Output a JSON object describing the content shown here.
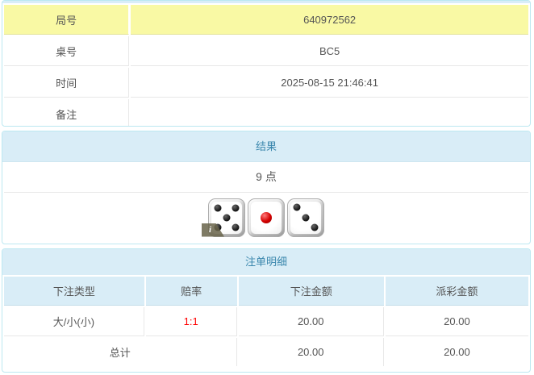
{
  "colors": {
    "highlight_yellow": "#f9f9a4",
    "heading_bg": "#d9edf7",
    "heading_text": "#3a87ad",
    "panel_border": "#bce8f1",
    "odds_red": "#ff0000",
    "body_text": "#555555"
  },
  "info_table": {
    "rows": [
      {
        "label": "局号",
        "value": "640972562",
        "highlighted": true
      },
      {
        "label": "桌号",
        "value": "BC5",
        "highlighted": false
      },
      {
        "label": "时间",
        "value": "2025-08-15 21:46:41",
        "highlighted": false
      },
      {
        "label": "备注",
        "value": "",
        "highlighted": false
      }
    ]
  },
  "result_panel": {
    "title": "结果",
    "points": "9 点",
    "dice": [
      {
        "value": 5,
        "color": "black"
      },
      {
        "value": 1,
        "color": "red"
      },
      {
        "value": 3,
        "color": "black"
      }
    ],
    "info_badge_label": "i"
  },
  "bets_panel": {
    "title": "注单明细",
    "columns": [
      "下注类型",
      "赔率",
      "下注金额",
      "派彩金额"
    ],
    "rows": [
      {
        "bet_type": "大/小(小)",
        "odds": "1:1",
        "bet_amount": "20.00",
        "payout_amount": "20.00"
      }
    ],
    "total": {
      "label": "总计",
      "bet_amount": "20.00",
      "payout_amount": "20.00"
    }
  }
}
